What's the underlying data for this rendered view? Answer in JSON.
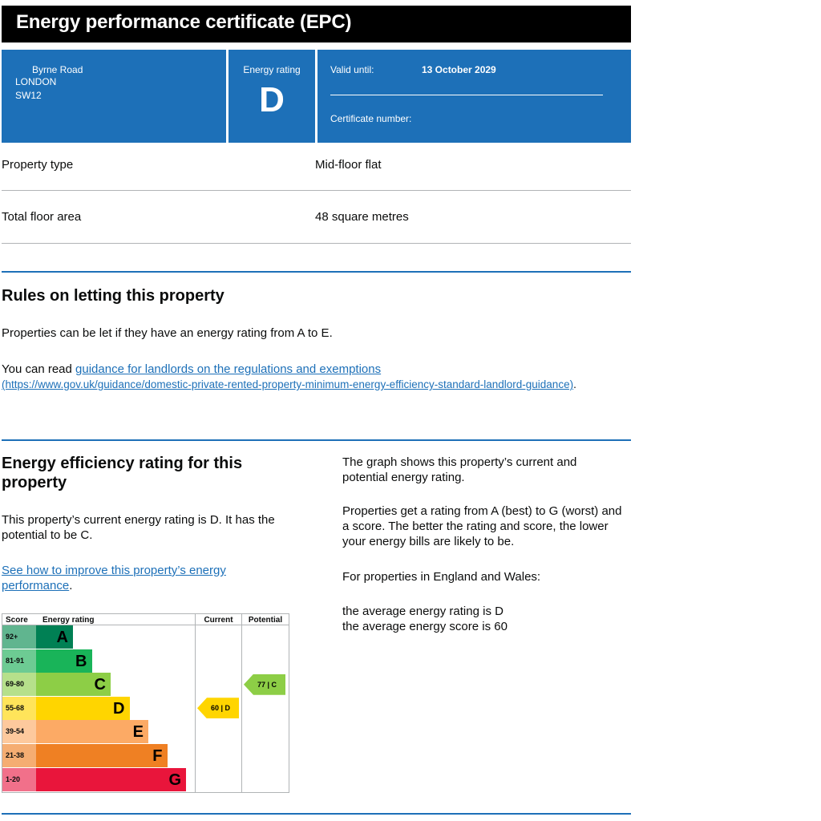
{
  "header": {
    "title": "Energy performance certificate (EPC)"
  },
  "summary": {
    "address": [
      "Byrne Road",
      "LONDON",
      "SW12"
    ],
    "rating_label": "Energy rating",
    "rating_letter": "D",
    "valid_label": "Valid until:",
    "valid_date": "13 October 2029",
    "cert_label": "Certificate number:"
  },
  "property": {
    "type_label": "Property type",
    "type_value": "Mid-floor flat",
    "area_label": "Total floor area",
    "area_value": "48 square metres"
  },
  "letting": {
    "heading": "Rules on letting this property",
    "para1": "Properties can be let if they have an energy rating from A to E.",
    "para2_prefix": "You can read ",
    "link_text": "guidance for landlords on the regulations and exemptions",
    "link_url_text": "(https://www.gov.uk/guidance/domestic-private-rented-property-minimum-energy-efficiency-standard-landlord-guidance)",
    "period": "."
  },
  "efficiency": {
    "heading": "Energy efficiency rating for this property",
    "para1": "This property’s current energy rating is D. It has the potential to be C.",
    "improve_link": "See how to improve this property’s energy performance",
    "period": ".",
    "right_para1": "The graph shows this property’s current and potential energy rating.",
    "right_para2": "Properties get a rating from A (best) to G (worst) and a score. The better the rating and score, the lower your energy bills are likely to be.",
    "right_para3": "For properties in England and Wales:",
    "avg_rating": "the average energy rating is D",
    "avg_score": "the average energy score is 60"
  },
  "graph": {
    "headers": {
      "score": "Score",
      "rating": "Energy rating",
      "current": "Current",
      "potential": "Potential"
    },
    "bands": [
      {
        "score": "92+",
        "letter": "A",
        "color": "#008054",
        "score_bg": "#60b58f"
      },
      {
        "score": "81-91",
        "letter": "B",
        "color": "#19b459",
        "score_bg": "#6dcb93"
      },
      {
        "score": "69-80",
        "letter": "C",
        "color": "#8dce46",
        "score_bg": "#b6e08b"
      },
      {
        "score": "55-68",
        "letter": "D",
        "color": "#ffd500",
        "score_bg": "#ffe45a"
      },
      {
        "score": "39-54",
        "letter": "E",
        "color": "#fcaa65",
        "score_bg": "#fdc99d"
      },
      {
        "score": "21-38",
        "letter": "F",
        "color": "#ef8023",
        "score_bg": "#f5ad72"
      },
      {
        "score": "1-20",
        "letter": "G",
        "color": "#e9153b",
        "score_bg": "#f1708a"
      }
    ],
    "current": {
      "label": "60 | D",
      "band": "D",
      "score": 60,
      "color": "#ffd500"
    },
    "potential": {
      "label": "77 | C",
      "band": "C",
      "score": 77,
      "color": "#8dce46"
    }
  }
}
